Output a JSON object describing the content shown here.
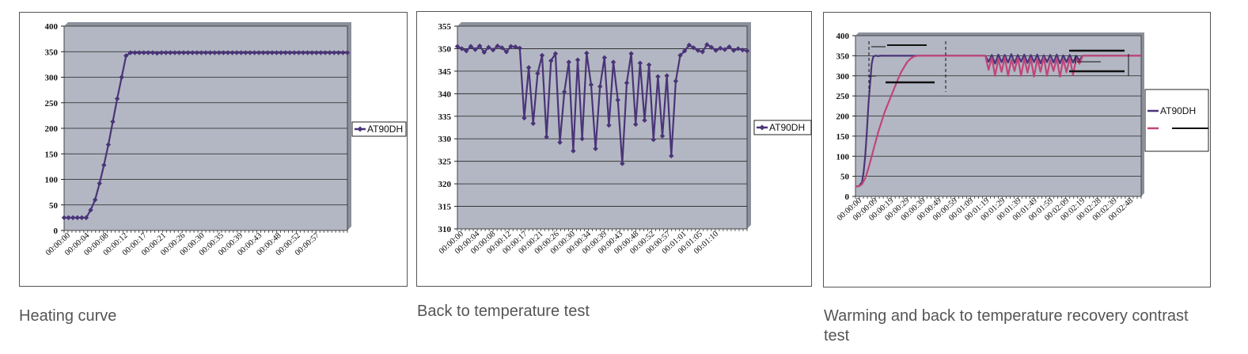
{
  "captions": [
    "Heating curve",
    "Back to temperature test",
    "Warming and back to temperature recovery contrast test"
  ],
  "colors": {
    "plot_bg": "#b3b7c3",
    "series_main": "#4a3478",
    "series_compare": "#c0457a"
  },
  "chart_data": [
    {
      "type": "line",
      "title": "",
      "xlabel": "",
      "ylabel": "",
      "ylim": [
        0,
        400
      ],
      "yticks": [
        0,
        50,
        100,
        150,
        200,
        250,
        300,
        350,
        400
      ],
      "grid": true,
      "legend": "right",
      "x_tick_labels": [
        "00:00:00",
        "00:00:04",
        "00:00:08",
        "00:00:12",
        "00:00:17",
        "00:00:21",
        "00:00:26",
        "00:00:30",
        "00:00:35",
        "00:00:39",
        "00:00:43",
        "00:00:48",
        "00:00:52",
        "00:00:57"
      ],
      "series": [
        {
          "name": "AT90DH",
          "marker": "diamond",
          "values": [
            25,
            25,
            25,
            25,
            25,
            25,
            40,
            60,
            92,
            128,
            168,
            213,
            258,
            300,
            342,
            348,
            348,
            348,
            348,
            348,
            348,
            347,
            348,
            348,
            348,
            348,
            348,
            348,
            348,
            348,
            348,
            348,
            348,
            348,
            348,
            348,
            348,
            348,
            348,
            348,
            348,
            348,
            348,
            348,
            348,
            348,
            348,
            348,
            348,
            348,
            348,
            348,
            348,
            348,
            348,
            348,
            348,
            348,
            348,
            348,
            348,
            348,
            348,
            348,
            348
          ]
        }
      ]
    },
    {
      "type": "line",
      "title": "",
      "xlabel": "",
      "ylabel": "",
      "ylim": [
        310,
        355
      ],
      "yticks": [
        310,
        315,
        320,
        325,
        330,
        335,
        340,
        345,
        350,
        355
      ],
      "grid": true,
      "legend": "right",
      "x_tick_labels": [
        "00:00:00",
        "00:00:04",
        "00:00:08",
        "00:00:12",
        "00:00:17",
        "00:00:21",
        "00:00:26",
        "00:00:30",
        "00:00:34",
        "00:00:39",
        "00:00:43",
        "00:00:48",
        "00:00:52",
        "00:00:57",
        "00:01:01",
        "00:01:05",
        "00:01:10"
      ],
      "series": [
        {
          "name": "AT90DH",
          "marker": "diamond",
          "values": [
            350.5,
            350,
            349.5,
            350.5,
            349.8,
            350.6,
            349.2,
            350.3,
            349.7,
            350.6,
            350.2,
            349.3,
            350.5,
            350.4,
            350.1,
            334.6,
            345.8,
            333.4,
            344.5,
            348.5,
            330.4,
            347.3,
            348.9,
            329.2,
            340.4,
            347,
            327.3,
            347.5,
            330,
            349,
            342,
            327.8,
            341.6,
            348,
            333,
            347,
            338.6,
            324.5,
            342.4,
            348.9,
            333.2,
            346.8,
            334.1,
            346.4,
            329.8,
            343.8,
            330.6,
            344,
            326.2,
            342.8,
            348.5,
            349.5,
            350.8,
            350.2,
            349.6,
            349.3,
            350.9,
            350.3,
            349.6,
            350.1,
            349.8,
            350.4,
            349.6,
            350,
            349.7,
            349.5
          ]
        }
      ]
    },
    {
      "type": "line",
      "title": "",
      "xlabel": "",
      "ylabel": "",
      "ylim": [
        0,
        400
      ],
      "yticks": [
        0,
        50,
        100,
        150,
        200,
        250,
        300,
        350,
        400
      ],
      "grid": true,
      "legend": "right",
      "x_tick_labels": [
        "00:00:00",
        "00:00:09",
        "00:00:19",
        "00:00:29",
        "00:00:39",
        "00:00:49",
        "00:00:59",
        "00:01:09",
        "00:01:19",
        "00:01:29",
        "00:01:39",
        "00:01:49",
        "00:01:59",
        "00:02:09",
        "00:02:19",
        "00:02:28",
        "00:02:39",
        "00:02:48"
      ],
      "series": [
        {
          "name": "AT90DH",
          "x": [
            0,
            2,
            4,
            5,
            6,
            7,
            8,
            9,
            10,
            11,
            12,
            13,
            14,
            15,
            16,
            18,
            20,
            30,
            40,
            50,
            60,
            70,
            79,
            80,
            82,
            84,
            86,
            88,
            90,
            92,
            94,
            96,
            98,
            100,
            102,
            104,
            106,
            108,
            110,
            112,
            114,
            116,
            118,
            120,
            122,
            124,
            126,
            128,
            130,
            132,
            134,
            136,
            138,
            139,
            140,
            150,
            160,
            170,
            176
          ],
          "values": [
            25,
            25,
            35,
            60,
            100,
            160,
            230,
            280,
            330,
            348,
            350,
            350,
            349,
            350,
            350,
            350,
            350,
            350,
            350,
            350,
            350,
            350,
            350,
            350,
            335,
            352,
            330,
            353,
            334,
            352,
            333,
            354,
            332,
            352,
            335,
            353,
            332,
            352,
            334,
            353,
            331,
            351,
            334,
            352,
            333,
            353,
            331,
            351,
            334,
            352,
            333,
            350,
            338,
            345,
            350,
            350,
            350,
            350,
            350
          ]
        },
        {
          "name": "",
          "x": [
            0,
            2,
            4,
            6,
            8,
            10,
            12,
            14,
            16,
            18,
            20,
            22,
            24,
            26,
            28,
            30,
            32,
            34,
            36,
            38,
            40,
            42,
            44,
            46,
            48,
            50,
            52,
            54,
            56,
            58,
            60,
            70,
            79,
            80,
            82,
            84,
            86,
            88,
            90,
            92,
            94,
            96,
            98,
            100,
            102,
            104,
            106,
            108,
            110,
            112,
            114,
            116,
            118,
            120,
            122,
            124,
            126,
            128,
            130,
            132,
            134,
            136,
            138,
            139,
            140,
            150,
            160,
            170,
            176
          ],
          "values": [
            25,
            25,
            30,
            45,
            70,
            100,
            130,
            160,
            185,
            210,
            230,
            250,
            270,
            290,
            308,
            322,
            335,
            343,
            348,
            350,
            350,
            350,
            350,
            350,
            350,
            350,
            350,
            350,
            350,
            350,
            350,
            350,
            350,
            350,
            315,
            345,
            300,
            342,
            310,
            346,
            300,
            340,
            312,
            345,
            300,
            343,
            308,
            344,
            298,
            342,
            310,
            346,
            300,
            340,
            312,
            344,
            298,
            341,
            309,
            345,
            302,
            343,
            330,
            340,
            350,
            350,
            350,
            350,
            350
          ]
        }
      ]
    }
  ]
}
